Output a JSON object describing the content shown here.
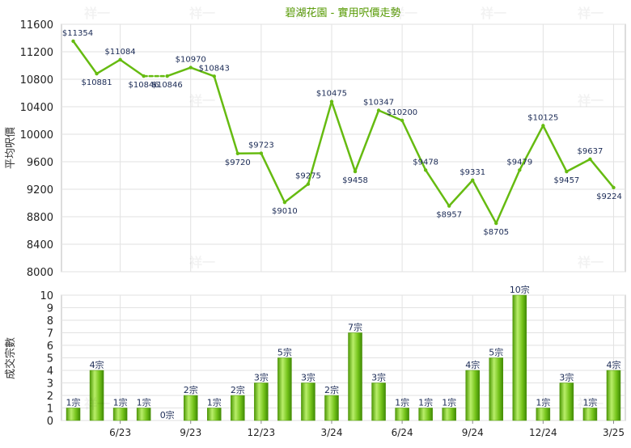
{
  "chart_data": [
    {
      "type": "line",
      "title": "碧湖花園 - 實用呎價走勢",
      "ylabel": "平均呎價",
      "ylim": [
        8000,
        11600
      ],
      "yticks": [
        8000,
        8400,
        8800,
        9200,
        9600,
        10000,
        10400,
        10800,
        11200,
        11600
      ],
      "grid": true,
      "line_color": "#66bb11",
      "x": [
        "4/23",
        "5/23",
        "6/23",
        "7/23",
        "8/23",
        "9/23",
        "10/23",
        "11/23",
        "12/23",
        "1/24",
        "2/24",
        "3/24",
        "4/24",
        "5/24",
        "6/24",
        "7/24",
        "8/24",
        "9/24",
        "10/24",
        "11/24",
        "12/24",
        "1/25",
        "2/25",
        "3/25"
      ],
      "values": [
        11354,
        10881,
        11084,
        10846,
        10846,
        10970,
        10843,
        9720,
        9723,
        9010,
        9275,
        10475,
        9458,
        10347,
        10200,
        9478,
        8957,
        9331,
        8705,
        9479,
        10125,
        9457,
        9637,
        9224
      ],
      "labels": [
        "$11354",
        "$10881",
        "$11084",
        "$10846",
        "$10846",
        "$10970",
        "$10843",
        "$9720",
        "$9723",
        "$9010",
        "$9275",
        "$10475",
        "$9458",
        "$10347",
        "$10200",
        "$9478",
        "$8957",
        "$9331",
        "$8705",
        "$9479",
        "$10125",
        "$9457",
        "$9637",
        "$9224"
      ],
      "dashed_segment_after": 3
    },
    {
      "type": "bar",
      "ylabel": "成交宗數",
      "ylim": [
        0,
        10
      ],
      "yticks": [
        0,
        1,
        2,
        3,
        4,
        5,
        6,
        7,
        8,
        9,
        10
      ],
      "grid": true,
      "bar_color": "#6cc00f",
      "values": [
        1,
        4,
        1,
        1,
        0,
        2,
        1,
        2,
        3,
        5,
        3,
        2,
        7,
        3,
        1,
        1,
        1,
        4,
        5,
        10,
        1,
        3,
        1,
        4
      ],
      "labels": [
        "1宗",
        "4宗",
        "1宗",
        "1宗",
        "0宗",
        "2宗",
        "1宗",
        "2宗",
        "3宗",
        "5宗",
        "3宗",
        "2宗",
        "7宗",
        "3宗",
        "1宗",
        "1宗",
        "1宗",
        "4宗",
        "5宗",
        "10宗",
        "1宗",
        "3宗",
        "1宗",
        "4宗"
      ],
      "xtick_labels": [
        "6/23",
        "9/23",
        "12/23",
        "3/24",
        "6/24",
        "9/24",
        "12/24",
        "3/25"
      ]
    }
  ],
  "watermark": "祥一"
}
